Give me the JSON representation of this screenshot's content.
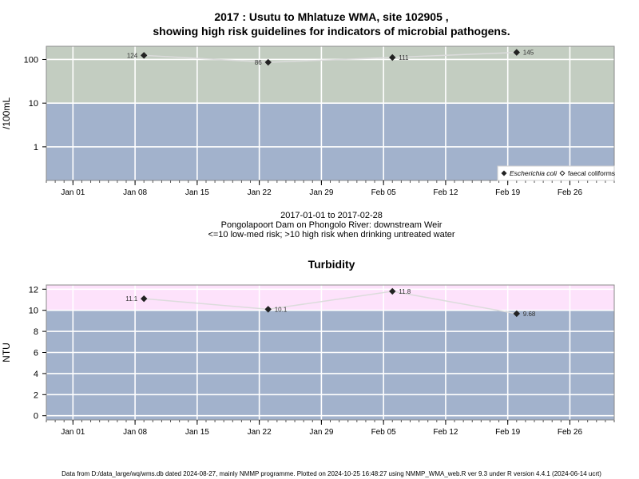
{
  "header": {
    "title_line1": "2017 : Usutu to Mhlatuze WMA, site 102905 ,",
    "title_line2": "showing high risk guidelines for indicators of microbial pathogens."
  },
  "middle": {
    "date_range": "2017-01-01 to 2017-02-28",
    "site_desc": "Pongolapoort Dam on Phongolo River: downstream Weir",
    "risk_note": "<=10 low-med risk; >10 high risk when drinking untreated water"
  },
  "turbidity": {
    "title": "Turbidity"
  },
  "footer": {
    "text": "Data from D:/data_large/wq/wms.db dated 2024-08-27, mainly NMMP programme. Plotted on 2024-10-25 16:48:27 using NMMP_WMA_web.R ver 9.3 under R version 4.4.1 (2024-06-14 ucrt)"
  },
  "colors": {
    "panel_border": "#8a8a8a",
    "low_band": "#a2b2cc",
    "high_band_micro": "#c3cdc1",
    "high_band_turb": "#fde2fb",
    "grid": "#ffffff",
    "series_line": "#dcdcdc",
    "point": "#222222"
  },
  "chart_data": [
    {
      "type": "line",
      "ylabel": "/100mL",
      "yscale": "log",
      "ylim": [
        0.17,
        200
      ],
      "yticks": [
        1,
        10,
        100
      ],
      "ytick_labels": [
        "1",
        "10",
        "100"
      ],
      "xlim": [
        "2016-12-29",
        "2017-03-03"
      ],
      "xticks": [
        "2017-01-01",
        "2017-01-08",
        "2017-01-15",
        "2017-01-22",
        "2017-01-29",
        "2017-02-05",
        "2017-02-12",
        "2017-02-19",
        "2017-02-26"
      ],
      "xtick_labels": [
        "Jan 01",
        "Jan 08",
        "Jan 15",
        "Jan 22",
        "Jan 29",
        "Feb 05",
        "Feb 12",
        "Feb 19",
        "Feb 26"
      ],
      "threshold": 10,
      "series": [
        {
          "name": "Escherichia coli",
          "marker": "filled-diamond",
          "x": [
            "2017-01-09",
            "2017-01-23",
            "2017-02-06",
            "2017-02-20"
          ],
          "values": [
            124,
            86,
            111,
            145
          ],
          "labels": [
            "124",
            "86",
            "111",
            "145"
          ],
          "label_side": [
            "left",
            "left",
            "right",
            "right"
          ]
        }
      ],
      "legend": {
        "position": "bottom-right",
        "entries": [
          {
            "label": "Escherichia coli",
            "marker": "filled-diamond",
            "italic": true
          },
          {
            "label": "faecal coliforms",
            "marker": "open-diamond",
            "italic": false
          }
        ]
      }
    },
    {
      "type": "line",
      "ylabel": "NTU",
      "yscale": "linear",
      "ylim": [
        -0.4,
        12.4
      ],
      "yticks": [
        0,
        2,
        4,
        6,
        8,
        10,
        12
      ],
      "ytick_labels": [
        "0",
        "2",
        "4",
        "6",
        "8",
        "10",
        "12"
      ],
      "xlim": [
        "2016-12-29",
        "2017-03-03"
      ],
      "xticks": [
        "2017-01-01",
        "2017-01-08",
        "2017-01-15",
        "2017-01-22",
        "2017-01-29",
        "2017-02-05",
        "2017-02-12",
        "2017-02-19",
        "2017-02-26"
      ],
      "xtick_labels": [
        "Jan 01",
        "Jan 08",
        "Jan 15",
        "Jan 22",
        "Jan 29",
        "Feb 05",
        "Feb 12",
        "Feb 19",
        "Feb 26"
      ],
      "threshold": 10,
      "series": [
        {
          "x": [
            "2017-01-09",
            "2017-01-23",
            "2017-02-06",
            "2017-02-20"
          ],
          "values": [
            11.1,
            10.1,
            11.8,
            9.68
          ],
          "labels": [
            "11.1",
            "10.1",
            "11.8",
            "9.68"
          ],
          "label_side": [
            "left",
            "right",
            "right",
            "right"
          ]
        }
      ]
    }
  ]
}
